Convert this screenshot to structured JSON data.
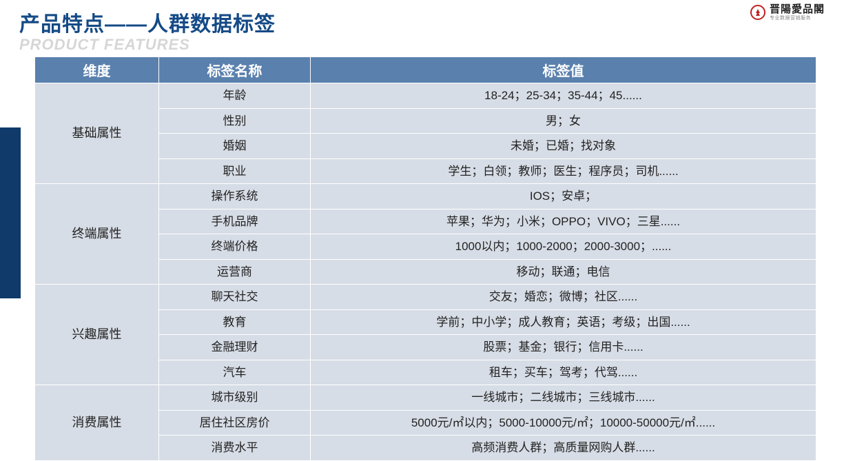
{
  "brand": {
    "name": "晋陽愛品閣",
    "sub": "专业数据营销服务"
  },
  "title": {
    "cn": "产品特点——人群数据标签",
    "en": "PRODUCT FEATURES"
  },
  "colors": {
    "header_bg": "#5a80ad",
    "header_text": "#ffffff",
    "cell_bg": "#d7dde6",
    "title_color": "#144a86",
    "subtitle_color": "#d6d6d6",
    "sidebar_color": "#0f3a6a",
    "logo_accent": "#c02020"
  },
  "table": {
    "headers": {
      "dim": "维度",
      "label": "标签名称",
      "value": "标签值"
    },
    "groups": [
      {
        "dim": "基础属性",
        "rows": [
          {
            "label": "年龄",
            "value": "18-24；25-34；35-44；45......"
          },
          {
            "label": "性别",
            "value": "男；女"
          },
          {
            "label": "婚姻",
            "value": "未婚；已婚；找对象"
          },
          {
            "label": "职业",
            "value": "学生；白领；教师；医生；程序员；司机......"
          }
        ]
      },
      {
        "dim": "终端属性",
        "rows": [
          {
            "label": "操作系统",
            "value": "IOS；安卓；"
          },
          {
            "label": "手机品牌",
            "value": "苹果；华为；小米；OPPO；VIVO；三星......"
          },
          {
            "label": "终端价格",
            "value": "1000以内；1000-2000；2000-3000；......"
          },
          {
            "label": "运营商",
            "value": "移动；联通；电信"
          }
        ]
      },
      {
        "dim": "兴趣属性",
        "rows": [
          {
            "label": "聊天社交",
            "value": "交友；婚恋；微博；社区......"
          },
          {
            "label": "教育",
            "value": "学前；中小学；成人教育；英语；考级；出国......"
          },
          {
            "label": "金融理财",
            "value": "股票；基金；银行；信用卡......"
          },
          {
            "label": "汽车",
            "value": "租车；买车；驾考；代驾......"
          }
        ]
      },
      {
        "dim": "消费属性",
        "rows": [
          {
            "label": "城市级别",
            "value": "一线城市；二线城市；三线城市......"
          },
          {
            "label": "居住社区房价",
            "value": "5000元/㎡以内；5000-10000元/㎡；10000-50000元/㎡......"
          },
          {
            "label": "消费水平",
            "value": "高频消费人群；高质量网购人群......"
          }
        ]
      }
    ]
  }
}
